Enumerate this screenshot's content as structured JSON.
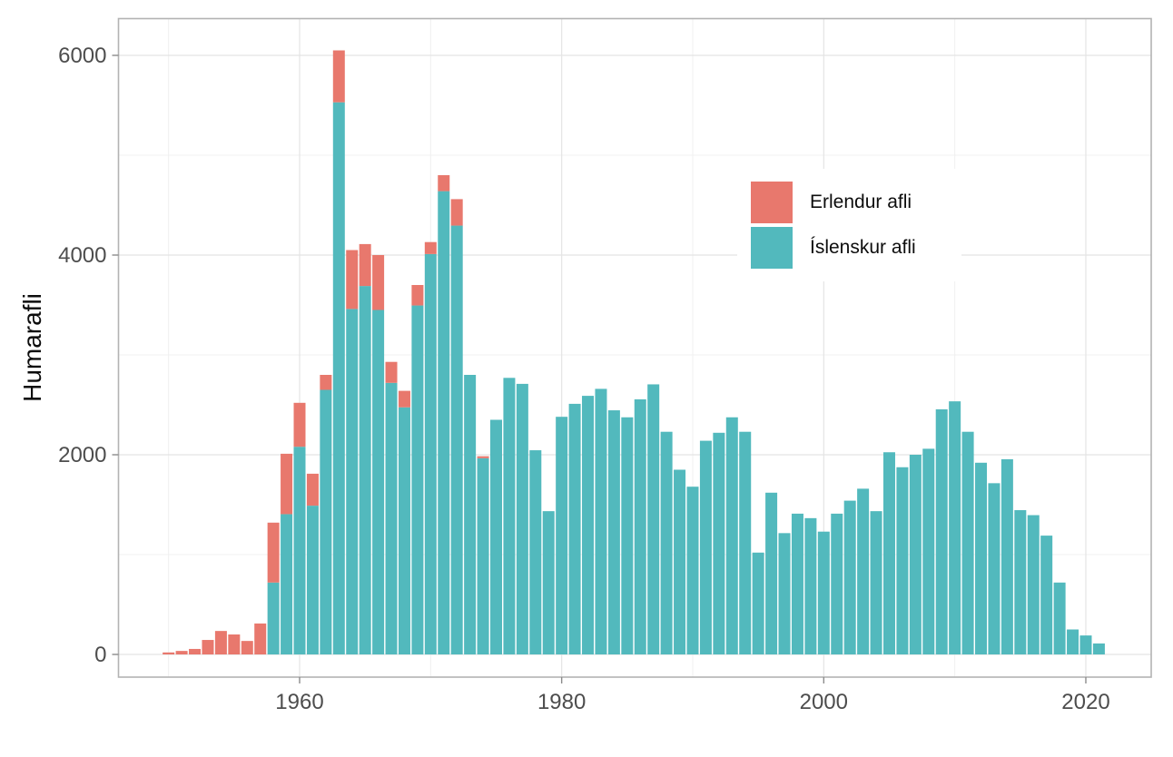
{
  "figure": {
    "y_axis_title": "Humarafli",
    "legend": {
      "items": [
        {
          "label": "Erlendur afli",
          "color": "#E8786D"
        },
        {
          "label": "Íslenskur afli",
          "color": "#52B9BD"
        }
      ]
    }
  },
  "chart_data": {
    "type": "bar",
    "stacked": true,
    "title": "",
    "xlabel": "",
    "ylabel": "Humarafli",
    "grid": true,
    "legend_position": "inside-top-right",
    "xlim": [
      1946.1,
      2025.0
    ],
    "ylim": [
      0,
      6400
    ],
    "x_ticks": [
      {
        "v": 1960,
        "label": "1960"
      },
      {
        "v": 1980,
        "label": "1980"
      },
      {
        "v": 2000,
        "label": "2000"
      },
      {
        "v": 2020,
        "label": "2020"
      }
    ],
    "x_minor": [
      1950,
      1970,
      1990,
      2010
    ],
    "y_ticks": [
      {
        "v": 0,
        "label": "0"
      },
      {
        "v": 2000,
        "label": "2000"
      },
      {
        "v": 4000,
        "label": "4000"
      },
      {
        "v": 6000,
        "label": "6000"
      }
    ],
    "y_minor": [
      1000,
      3000,
      5000
    ],
    "years": [
      1950,
      1951,
      1952,
      1953,
      1954,
      1955,
      1956,
      1957,
      1958,
      1959,
      1960,
      1961,
      1962,
      1963,
      1964,
      1965,
      1966,
      1967,
      1968,
      1969,
      1970,
      1971,
      1972,
      1973,
      1974,
      1975,
      1976,
      1977,
      1978,
      1979,
      1980,
      1981,
      1982,
      1983,
      1984,
      1985,
      1986,
      1987,
      1988,
      1989,
      1990,
      1991,
      1992,
      1993,
      1994,
      1995,
      1996,
      1997,
      1998,
      1999,
      2000,
      2001,
      2002,
      2003,
      2004,
      2005,
      2006,
      2007,
      2008,
      2009,
      2010,
      2011,
      2012,
      2013,
      2014,
      2015,
      2016,
      2017,
      2018,
      2019,
      2020,
      2021
    ],
    "series": [
      {
        "name": "Íslenskur afli",
        "color": "#52B9BD",
        "values": [
          0,
          0,
          0,
          0,
          0,
          0,
          0,
          0,
          720,
          1405,
          2080,
          1490,
          2650,
          5530,
          3460,
          3690,
          3450,
          2720,
          2475,
          3495,
          4010,
          4640,
          4295,
          2800,
          1965,
          2350,
          2770,
          2710,
          2045,
          1435,
          2380,
          2510,
          2590,
          2660,
          2445,
          2375,
          2555,
          2705,
          2230,
          1850,
          1680,
          2140,
          2220,
          2375,
          2230,
          1020,
          1620,
          1215,
          1410,
          1365,
          1230,
          1410,
          1540,
          1660,
          1435,
          2025,
          1875,
          2000,
          2060,
          2455,
          2535,
          2230,
          1920,
          1715,
          1955,
          1445,
          1395,
          1190,
          720,
          250,
          190,
          110
        ]
      },
      {
        "name": "Erlendur afli",
        "color": "#E8786D",
        "values": [
          20,
          35,
          55,
          145,
          235,
          200,
          135,
          310,
          600,
          605,
          440,
          320,
          150,
          520,
          590,
          420,
          550,
          210,
          165,
          205,
          120,
          160,
          265,
          0,
          20,
          0,
          0,
          0,
          0,
          0,
          0,
          0,
          0,
          0,
          0,
          0,
          0,
          0,
          0,
          0,
          0,
          0,
          0,
          0,
          0,
          0,
          0,
          0,
          0,
          0,
          0,
          0,
          0,
          0,
          0,
          0,
          0,
          0,
          0,
          0,
          0,
          0,
          0,
          0,
          0,
          0,
          0,
          0,
          0,
          0,
          0,
          0
        ]
      }
    ]
  }
}
